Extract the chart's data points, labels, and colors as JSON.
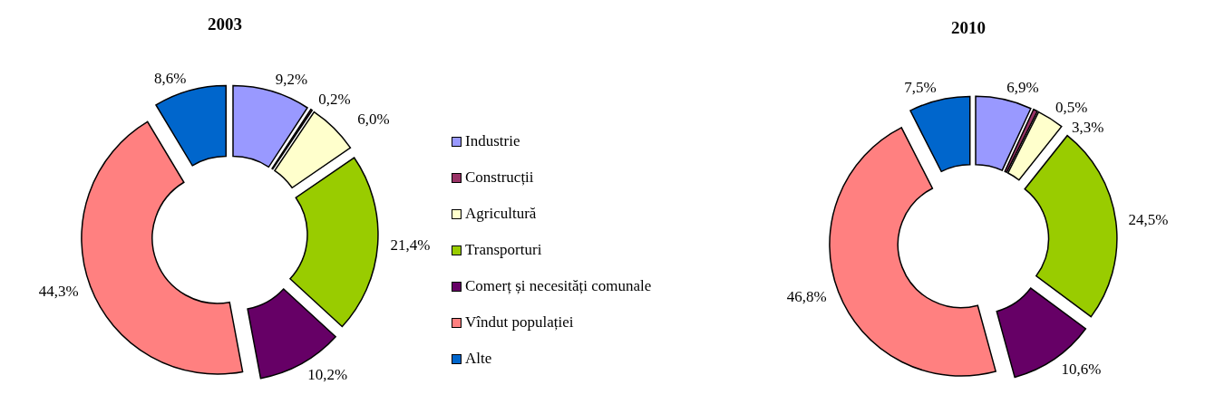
{
  "chart_data": {
    "type": "donut",
    "categories": [
      "Industrie",
      "Construcții",
      "Agricultură",
      "Transporturi",
      "Comerț și necesități comunale",
      "Vîndut populației",
      "Alte"
    ],
    "colors": [
      "#9999ff",
      "#993366",
      "#ffffcc",
      "#99cc00",
      "#660066",
      "#ff8080",
      "#0066cc"
    ],
    "legend": "bottom",
    "series": [
      {
        "name": "2003",
        "values": [
          9.2,
          0.2,
          6.0,
          21.4,
          10.2,
          44.3,
          8.6
        ],
        "value_labels": [
          "9,2%",
          "0,2%",
          "6,0%",
          "21,4%",
          "10,2%",
          "44,3%",
          "8,6%"
        ]
      },
      {
        "name": "2010",
        "values": [
          6.9,
          0.5,
          3.3,
          24.5,
          10.6,
          46.8,
          7.5
        ],
        "value_labels": [
          "6,9%",
          "0,5%",
          "3,3%",
          "24,5%",
          "10,6%",
          "46,8%",
          "7,5%"
        ]
      }
    ]
  }
}
